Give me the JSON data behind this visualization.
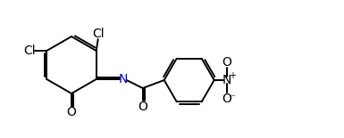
{
  "bg_color": "#ffffff",
  "line_color": "#000000",
  "lw": 1.4,
  "dbo": 0.022,
  "figsize": [
    3.85,
    1.55
  ],
  "dpi": 100,
  "xlim": [
    0,
    3.85
  ],
  "ylim": [
    0,
    1.55
  ],
  "N_color": "#0000bb"
}
